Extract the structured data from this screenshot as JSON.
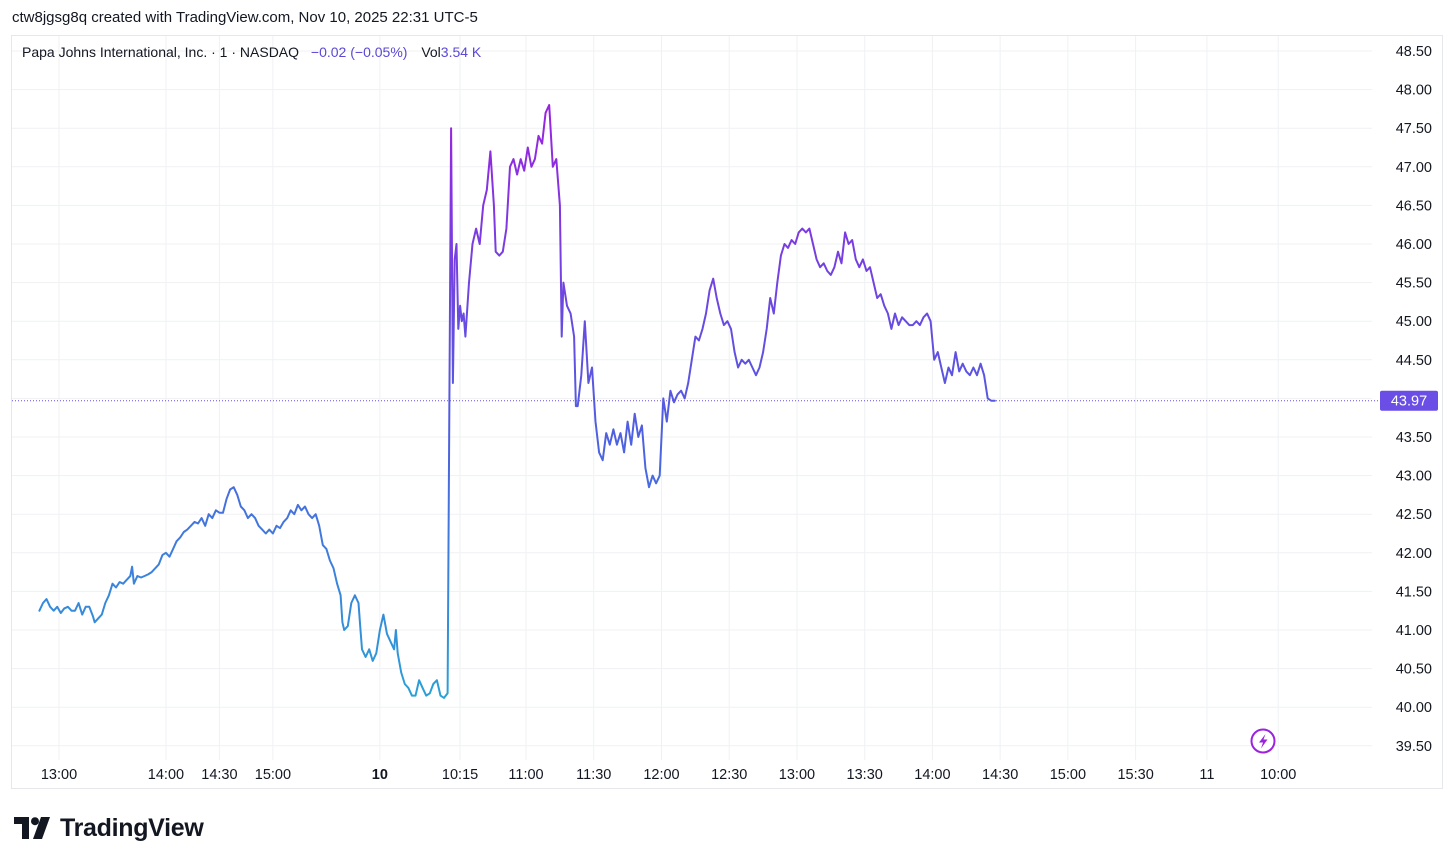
{
  "caption": "ctw8jgsg8q created with TradingView.com, Nov 10, 2025 22:31 UTC-5",
  "legend": {
    "symbol": "Papa Johns International, Inc. · 1 · NASDAQ",
    "change": "−0.02 (−0.05%)",
    "vol_label": "Vol",
    "vol_value": "3.54 K"
  },
  "brand": {
    "name": "TradingView",
    "logo_icon": "tradingview-logo-icon"
  },
  "colors": {
    "line_early": "#2a73d4",
    "line_late": "#9b22e0",
    "last_price": "#6a4ee6",
    "grid": "#f0f1f3",
    "axis_text": "#131722"
  },
  "chart_data": {
    "type": "line",
    "title": "Papa Johns International, Inc. · 1 · NASDAQ",
    "xlabel": "",
    "ylabel": "",
    "ylim": [
      39.35,
      48.65
    ],
    "grid": true,
    "y_ticks": [
      "48.50",
      "48.00",
      "47.50",
      "47.00",
      "46.50",
      "46.00",
      "45.50",
      "45.00",
      "44.50",
      "44.00",
      "43.50",
      "43.00",
      "42.50",
      "42.00",
      "41.50",
      "41.00",
      "40.50",
      "40.00",
      "39.50"
    ],
    "x_ticks": [
      {
        "label": "13:00",
        "bold": false,
        "t": 0
      },
      {
        "label": "14:00",
        "bold": false,
        "t": 60
      },
      {
        "label": "14:30",
        "bold": false,
        "t": 90
      },
      {
        "label": "15:00",
        "bold": false,
        "t": 120
      },
      {
        "label": "10",
        "bold": true,
        "t": 180
      },
      {
        "label": "10:15",
        "bold": false,
        "t": 225
      },
      {
        "label": "11:00",
        "bold": false,
        "t": 262
      },
      {
        "label": "11:30",
        "bold": false,
        "t": 300
      },
      {
        "label": "12:00",
        "bold": false,
        "t": 338
      },
      {
        "label": "12:30",
        "bold": false,
        "t": 376
      },
      {
        "label": "13:00",
        "bold": false,
        "t": 414
      },
      {
        "label": "13:30",
        "bold": false,
        "t": 452
      },
      {
        "label": "14:00",
        "bold": false,
        "t": 490
      },
      {
        "label": "14:30",
        "bold": false,
        "t": 528
      },
      {
        "label": "15:00",
        "bold": false,
        "t": 566
      },
      {
        "label": "15:30",
        "bold": false,
        "t": 604
      },
      {
        "label": "11",
        "bold": false,
        "t": 644
      },
      {
        "label": "10:00",
        "bold": false,
        "t": 684
      }
    ],
    "series": [
      {
        "points": [
          [
            -11,
            41.25
          ],
          [
            -9,
            41.35
          ],
          [
            -7,
            41.4
          ],
          [
            -5,
            41.3
          ],
          [
            -3,
            41.25
          ],
          [
            -1,
            41.3
          ],
          [
            1,
            41.22
          ],
          [
            3,
            41.28
          ],
          [
            5,
            41.3
          ],
          [
            7,
            41.25
          ],
          [
            9,
            41.25
          ],
          [
            11,
            41.35
          ],
          [
            13,
            41.2
          ],
          [
            15,
            41.3
          ],
          [
            17,
            41.3
          ],
          [
            19,
            41.18
          ],
          [
            20,
            41.1
          ],
          [
            22,
            41.15
          ],
          [
            24,
            41.2
          ],
          [
            26,
            41.35
          ],
          [
            28,
            41.45
          ],
          [
            30,
            41.6
          ],
          [
            32,
            41.55
          ],
          [
            34,
            41.62
          ],
          [
            36,
            41.6
          ],
          [
            38,
            41.65
          ],
          [
            40,
            41.7
          ],
          [
            41,
            41.82
          ],
          [
            42,
            41.6
          ],
          [
            44,
            41.7
          ],
          [
            46,
            41.68
          ],
          [
            48,
            41.7
          ],
          [
            50,
            41.72
          ],
          [
            52,
            41.75
          ],
          [
            54,
            41.8
          ],
          [
            56,
            41.85
          ],
          [
            58,
            41.97
          ],
          [
            60,
            42.0
          ],
          [
            62,
            41.95
          ],
          [
            64,
            42.05
          ],
          [
            66,
            42.15
          ],
          [
            68,
            42.2
          ],
          [
            70,
            42.27
          ],
          [
            72,
            42.3
          ],
          [
            74,
            42.35
          ],
          [
            76,
            42.4
          ],
          [
            78,
            42.38
          ],
          [
            80,
            42.45
          ],
          [
            82,
            42.35
          ],
          [
            84,
            42.5
          ],
          [
            86,
            42.45
          ],
          [
            88,
            42.55
          ],
          [
            90,
            42.52
          ],
          [
            92,
            42.52
          ],
          [
            94,
            42.7
          ],
          [
            96,
            42.82
          ],
          [
            98,
            42.85
          ],
          [
            100,
            42.75
          ],
          [
            102,
            42.6
          ],
          [
            104,
            42.55
          ],
          [
            106,
            42.45
          ],
          [
            108,
            42.5
          ],
          [
            110,
            42.45
          ],
          [
            112,
            42.35
          ],
          [
            114,
            42.3
          ],
          [
            116,
            42.25
          ],
          [
            118,
            42.3
          ],
          [
            120,
            42.25
          ],
          [
            122,
            42.35
          ],
          [
            124,
            42.32
          ],
          [
            126,
            42.4
          ],
          [
            128,
            42.45
          ],
          [
            130,
            42.55
          ],
          [
            132,
            42.5
          ],
          [
            134,
            42.62
          ],
          [
            136,
            42.55
          ],
          [
            138,
            42.6
          ],
          [
            140,
            42.5
          ],
          [
            142,
            42.45
          ],
          [
            144,
            42.5
          ],
          [
            146,
            42.35
          ],
          [
            148,
            42.1
          ],
          [
            150,
            42.05
          ],
          [
            152,
            41.9
          ],
          [
            154,
            41.8
          ],
          [
            156,
            41.6
          ],
          [
            158,
            41.45
          ],
          [
            159,
            41.1
          ],
          [
            160,
            41.0
          ],
          [
            162,
            41.05
          ],
          [
            164,
            41.35
          ],
          [
            166,
            41.45
          ],
          [
            168,
            41.35
          ],
          [
            169,
            41.05
          ],
          [
            170,
            40.75
          ],
          [
            172,
            40.65
          ],
          [
            174,
            40.75
          ],
          [
            176,
            40.6
          ],
          [
            178,
            40.7
          ],
          [
            180,
            41.0
          ],
          [
            182,
            41.2
          ],
          [
            184,
            40.95
          ],
          [
            186,
            40.85
          ],
          [
            188,
            40.75
          ],
          [
            189,
            41.0
          ],
          [
            190,
            40.7
          ],
          [
            192,
            40.45
          ],
          [
            194,
            40.3
          ],
          [
            196,
            40.25
          ],
          [
            198,
            40.15
          ],
          [
            200,
            40.15
          ],
          [
            202,
            40.35
          ],
          [
            204,
            40.25
          ],
          [
            206,
            40.15
          ],
          [
            208,
            40.18
          ],
          [
            210,
            40.3
          ],
          [
            212,
            40.35
          ],
          [
            214,
            40.15
          ],
          [
            216,
            40.12
          ],
          [
            218,
            40.18
          ],
          [
            219,
            44.0
          ],
          [
            220,
            47.5
          ],
          [
            221,
            44.2
          ],
          [
            222,
            45.8
          ],
          [
            223,
            46.0
          ],
          [
            224,
            44.9
          ],
          [
            225,
            45.2
          ],
          [
            226,
            45.0
          ],
          [
            227,
            45.1
          ],
          [
            228,
            44.8
          ],
          [
            230,
            45.5
          ],
          [
            232,
            46.0
          ],
          [
            234,
            46.2
          ],
          [
            236,
            46.0
          ],
          [
            238,
            46.5
          ],
          [
            240,
            46.7
          ],
          [
            242,
            47.2
          ],
          [
            244,
            46.5
          ],
          [
            245,
            45.9
          ],
          [
            247,
            45.85
          ],
          [
            249,
            45.9
          ],
          [
            251,
            46.2
          ],
          [
            253,
            47.0
          ],
          [
            255,
            47.1
          ],
          [
            257,
            46.9
          ],
          [
            259,
            47.1
          ],
          [
            261,
            46.95
          ],
          [
            263,
            47.25
          ],
          [
            265,
            47.0
          ],
          [
            267,
            47.1
          ],
          [
            269,
            47.4
          ],
          [
            271,
            47.3
          ],
          [
            273,
            47.7
          ],
          [
            275,
            47.8
          ],
          [
            277,
            47.0
          ],
          [
            279,
            47.1
          ],
          [
            281,
            46.5
          ],
          [
            282,
            44.8
          ],
          [
            283,
            45.5
          ],
          [
            285,
            45.2
          ],
          [
            287,
            45.1
          ],
          [
            289,
            44.8
          ],
          [
            290,
            43.9
          ],
          [
            291,
            43.9
          ],
          [
            293,
            44.3
          ],
          [
            295,
            45.0
          ],
          [
            297,
            44.2
          ],
          [
            299,
            44.4
          ],
          [
            301,
            43.7
          ],
          [
            303,
            43.3
          ],
          [
            305,
            43.2
          ],
          [
            307,
            43.55
          ],
          [
            309,
            43.4
          ],
          [
            311,
            43.6
          ],
          [
            313,
            43.4
          ],
          [
            315,
            43.55
          ],
          [
            317,
            43.3
          ],
          [
            319,
            43.7
          ],
          [
            321,
            43.4
          ],
          [
            323,
            43.8
          ],
          [
            325,
            43.5
          ],
          [
            327,
            43.65
          ],
          [
            329,
            43.1
          ],
          [
            331,
            42.85
          ],
          [
            333,
            43.0
          ],
          [
            335,
            42.9
          ],
          [
            337,
            43.0
          ],
          [
            339,
            44.0
          ],
          [
            341,
            43.7
          ],
          [
            343,
            44.1
          ],
          [
            345,
            43.95
          ],
          [
            347,
            44.05
          ],
          [
            349,
            44.1
          ],
          [
            351,
            44.0
          ],
          [
            353,
            44.2
          ],
          [
            355,
            44.5
          ],
          [
            357,
            44.8
          ],
          [
            359,
            44.75
          ],
          [
            361,
            44.9
          ],
          [
            363,
            45.1
          ],
          [
            365,
            45.4
          ],
          [
            367,
            45.55
          ],
          [
            369,
            45.3
          ],
          [
            371,
            45.1
          ],
          [
            373,
            44.95
          ],
          [
            375,
            45.0
          ],
          [
            377,
            44.9
          ],
          [
            379,
            44.6
          ],
          [
            381,
            44.4
          ],
          [
            383,
            44.5
          ],
          [
            385,
            44.45
          ],
          [
            387,
            44.5
          ],
          [
            389,
            44.4
          ],
          [
            391,
            44.3
          ],
          [
            393,
            44.4
          ],
          [
            395,
            44.6
          ],
          [
            397,
            44.9
          ],
          [
            399,
            45.3
          ],
          [
            401,
            45.1
          ],
          [
            403,
            45.5
          ],
          [
            405,
            45.85
          ],
          [
            407,
            46.0
          ],
          [
            409,
            45.95
          ],
          [
            411,
            46.05
          ],
          [
            413,
            46.0
          ],
          [
            415,
            46.15
          ],
          [
            417,
            46.2
          ],
          [
            419,
            46.15
          ],
          [
            421,
            46.2
          ],
          [
            423,
            46.0
          ],
          [
            425,
            45.8
          ],
          [
            427,
            45.7
          ],
          [
            429,
            45.75
          ],
          [
            431,
            45.65
          ],
          [
            433,
            45.6
          ],
          [
            435,
            45.7
          ],
          [
            437,
            45.9
          ],
          [
            439,
            45.75
          ],
          [
            441,
            46.15
          ],
          [
            443,
            46.0
          ],
          [
            445,
            46.05
          ],
          [
            447,
            45.8
          ],
          [
            449,
            45.7
          ],
          [
            451,
            45.8
          ],
          [
            453,
            45.65
          ],
          [
            455,
            45.7
          ],
          [
            457,
            45.5
          ],
          [
            459,
            45.3
          ],
          [
            461,
            45.35
          ],
          [
            463,
            45.2
          ],
          [
            465,
            45.1
          ],
          [
            467,
            44.9
          ],
          [
            469,
            45.1
          ],
          [
            471,
            44.95
          ],
          [
            473,
            45.05
          ],
          [
            475,
            45.0
          ],
          [
            477,
            44.95
          ],
          [
            479,
            44.95
          ],
          [
            481,
            45.0
          ],
          [
            483,
            44.95
          ],
          [
            485,
            45.05
          ],
          [
            487,
            45.1
          ],
          [
            489,
            45.0
          ],
          [
            491,
            44.5
          ],
          [
            493,
            44.6
          ],
          [
            495,
            44.4
          ],
          [
            497,
            44.2
          ],
          [
            499,
            44.4
          ],
          [
            501,
            44.3
          ],
          [
            503,
            44.6
          ],
          [
            505,
            44.35
          ],
          [
            507,
            44.45
          ],
          [
            509,
            44.35
          ],
          [
            511,
            44.3
          ],
          [
            513,
            44.4
          ],
          [
            515,
            44.3
          ],
          [
            517,
            44.45
          ],
          [
            519,
            44.3
          ],
          [
            521,
            44.0
          ],
          [
            523,
            43.97
          ],
          [
            525,
            43.97
          ]
        ]
      }
    ],
    "last_price": "43.97",
    "last_price_value": 43.97
  }
}
